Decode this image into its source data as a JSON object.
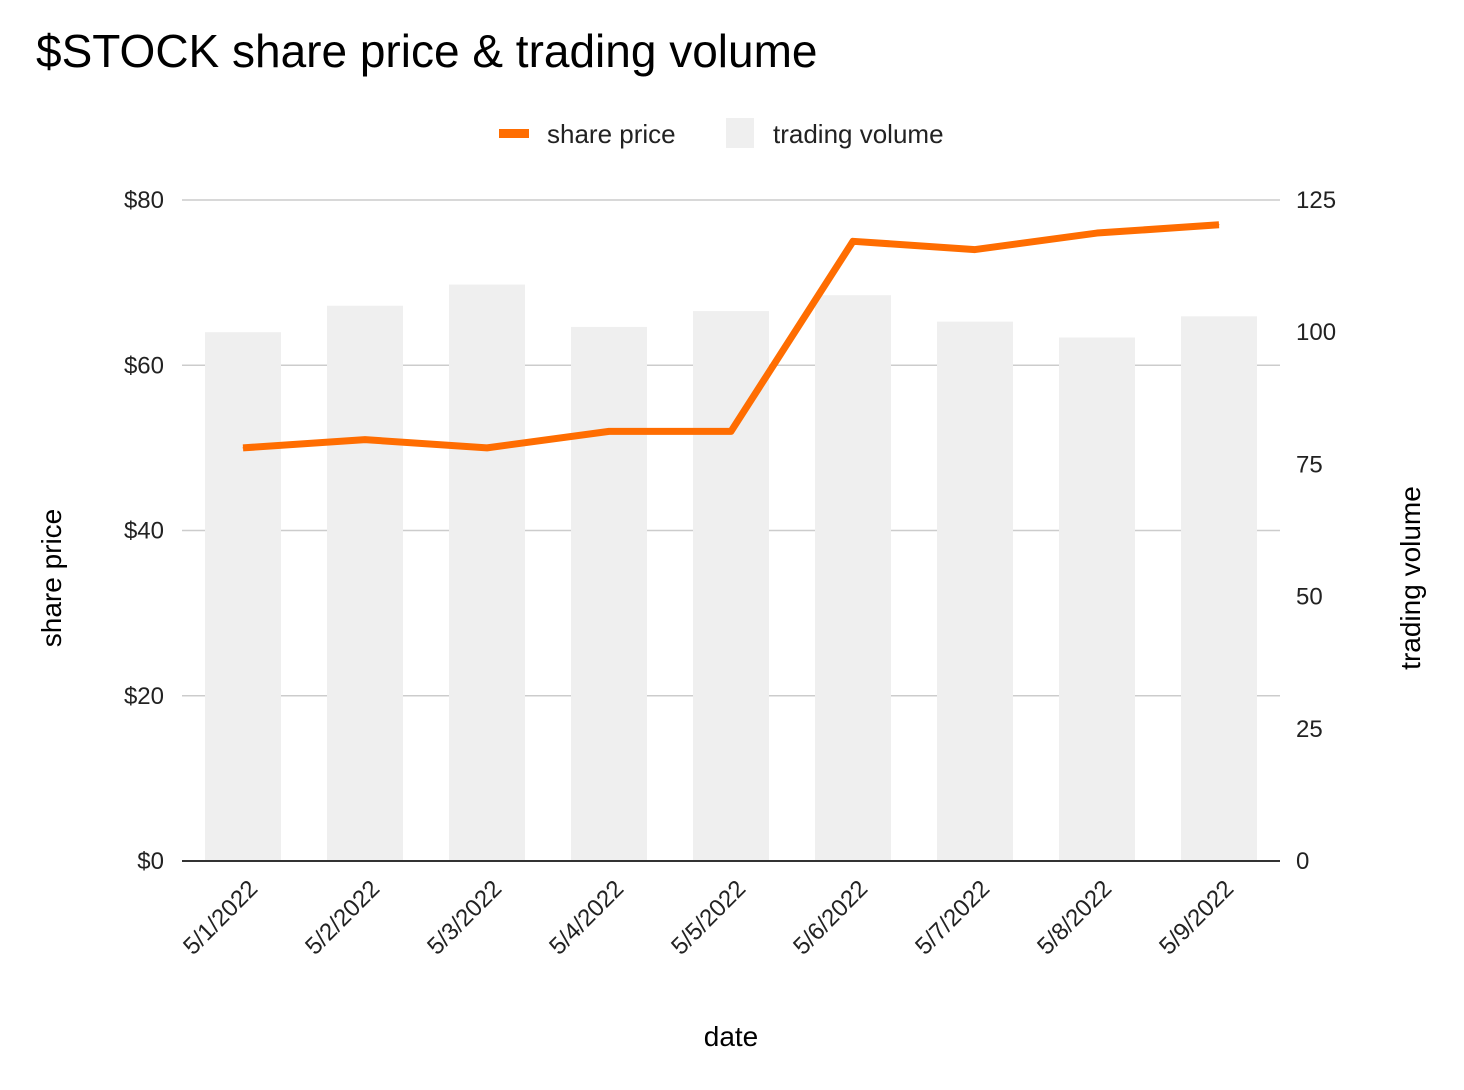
{
  "chart_data": {
    "type": "bar",
    "title": "$STOCK share price & trading volume",
    "xlabel": "date",
    "ylabel": "share price",
    "y2label": "trading volume",
    "categories": [
      "5/1/2022",
      "5/2/2022",
      "5/3/2022",
      "5/4/2022",
      "5/5/2022",
      "5/6/2022",
      "5/7/2022",
      "5/8/2022",
      "5/9/2022"
    ],
    "series": [
      {
        "name": "share price",
        "type": "line",
        "axis": "left",
        "color": "#ff6d01",
        "values": [
          50,
          51,
          50,
          52,
          52,
          75,
          74,
          76,
          77
        ]
      },
      {
        "name": "trading volume",
        "type": "bar",
        "axis": "right",
        "color": "#efefef",
        "values": [
          100,
          105,
          109,
          101,
          104,
          107,
          102,
          99,
          103
        ]
      }
    ],
    "ylim": [
      0,
      80
    ],
    "y_ticks": [
      "$0",
      "$20",
      "$40",
      "$60",
      "$80"
    ],
    "y2lim": [
      0,
      125
    ],
    "y2_ticks": [
      "0",
      "25",
      "50",
      "75",
      "100",
      "125"
    ],
    "grid": true,
    "legend_position": "top-center"
  }
}
